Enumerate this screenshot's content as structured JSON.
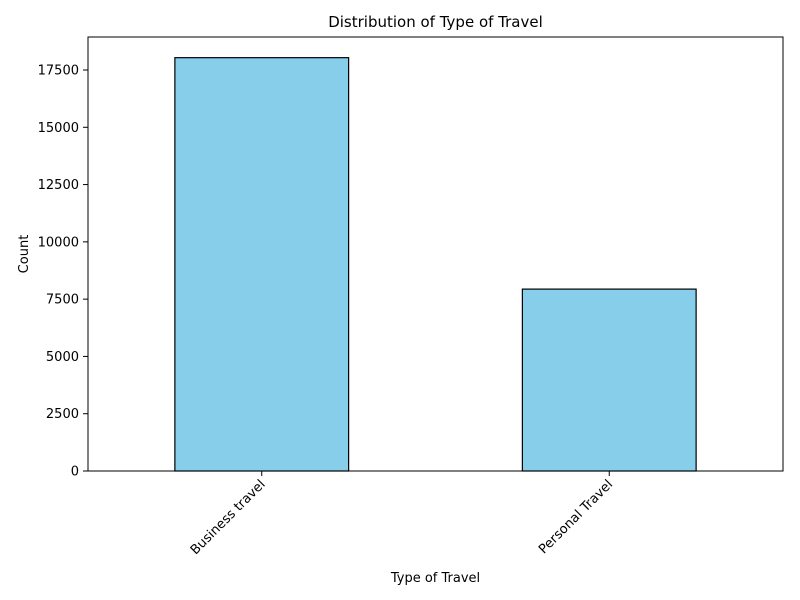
{
  "chart_data": {
    "type": "bar",
    "title": "Distribution of Type of Travel",
    "xlabel": "Type of Travel",
    "ylabel": "Count",
    "categories": [
      "Business travel",
      "Personal Travel"
    ],
    "values": [
      18038,
      7938
    ],
    "ylim": [
      0,
      18940
    ],
    "yticks": [
      0,
      2500,
      5000,
      7500,
      10000,
      12500,
      15000,
      17500
    ],
    "grid": false,
    "legend": "none",
    "bar_color": "#87ceeb",
    "edge_color": "#000000",
    "xtick_rotation_deg": 45
  }
}
